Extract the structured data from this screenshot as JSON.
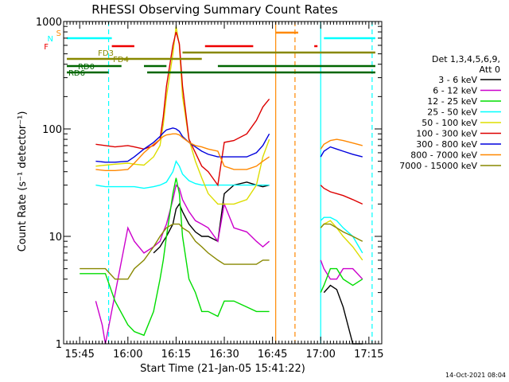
{
  "chart_data": {
    "type": "line",
    "title": "RHESSI Observing Summary Count Rates",
    "xlabel": "Start Time (21-Jan-05 15:41:22)",
    "ylabel": "Count Rate (s⁻¹ detector⁻¹)",
    "y_scale": "log",
    "ylim": [
      1,
      1000
    ],
    "xlim_minutes_after_1540": [
      0,
      99
    ],
    "x_tick_labels": [
      "15:45",
      "16:00",
      "16:15",
      "16:30",
      "16:45",
      "17:00",
      "17:15"
    ],
    "x_tick_minutes": [
      5,
      20,
      35,
      50,
      65,
      80,
      95
    ],
    "y_tick_labels": [
      "1",
      "10",
      "100",
      "1000"
    ],
    "y_tick_values": [
      1,
      10,
      100,
      1000
    ],
    "grid": false,
    "legend_position": "right",
    "legend_header": [
      "Det 1,3,4,5,6,9,",
      "Att 0"
    ],
    "series": [
      {
        "name": "3 - 6 keV",
        "color": "#000000",
        "x": [
          5,
          13,
          18,
          20,
          22,
          25,
          28,
          30,
          31,
          32,
          34,
          35,
          36,
          37,
          39,
          41,
          43,
          45,
          48,
          50,
          53,
          57,
          60,
          62,
          64,
          66,
          67,
          79,
          80,
          81,
          83,
          85,
          87,
          90,
          93,
          95,
          96
        ],
        "y": [
          null,
          null,
          null,
          null,
          null,
          null,
          7,
          8,
          9,
          10,
          13,
          18,
          20,
          17,
          13,
          11,
          10,
          10,
          9,
          25,
          30,
          32,
          30,
          29,
          30,
          null,
          null,
          null,
          null,
          3.0,
          3.5,
          3.2,
          2.2,
          1.0,
          1.0,
          null,
          null
        ]
      },
      {
        "name": "6 - 12 keV",
        "color": "#cc00cc",
        "x": [
          5,
          10,
          12,
          13,
          20,
          22,
          25,
          28,
          30,
          31,
          32,
          34,
          35,
          36,
          37,
          39,
          41,
          43,
          45,
          48,
          50,
          53,
          57,
          60,
          62,
          64,
          66,
          67,
          79,
          80,
          81,
          83,
          85,
          87,
          90,
          93,
          95,
          96
        ],
        "y": [
          null,
          2.5,
          1.5,
          1.0,
          12,
          9,
          7,
          8,
          9,
          11,
          13,
          22,
          30,
          28,
          22,
          17,
          14,
          13,
          12,
          9,
          20,
          12,
          11,
          9,
          8,
          9,
          null,
          null,
          null,
          6,
          5,
          4,
          4,
          5,
          5,
          4,
          null,
          null
        ]
      },
      {
        "name": "12 - 25 keV",
        "color": "#00dd00",
        "x": [
          5,
          10,
          13,
          16,
          20,
          22,
          25,
          28,
          30,
          31,
          32,
          34,
          35,
          36,
          37,
          39,
          41,
          43,
          45,
          48,
          50,
          53,
          57,
          60,
          62,
          64,
          66,
          67,
          79,
          80,
          81,
          83,
          85,
          87,
          90,
          93,
          95,
          96
        ],
        "y": [
          4.5,
          4.5,
          4.5,
          2.5,
          1.5,
          1.3,
          1.2,
          2.0,
          4,
          6,
          10,
          25,
          35,
          25,
          10,
          4,
          3,
          2,
          2,
          1.8,
          2.5,
          2.5,
          2.2,
          2,
          2,
          2,
          null,
          null,
          null,
          3,
          3.5,
          5,
          5,
          4,
          3.5,
          4,
          null,
          null
        ]
      },
      {
        "name": "25 - 50 keV",
        "color": "#00ffff",
        "x": [
          5,
          10,
          13,
          16,
          20,
          22,
          25,
          28,
          30,
          31,
          32,
          34,
          35,
          36,
          37,
          39,
          41,
          43,
          45,
          48,
          50,
          53,
          57,
          60,
          62,
          64,
          66,
          67,
          79,
          80,
          81,
          83,
          85,
          87,
          90,
          93,
          95,
          96
        ],
        "y": [
          null,
          30,
          29,
          29,
          29,
          29,
          28,
          29,
          30,
          31,
          32,
          40,
          50,
          45,
          38,
          33,
          31,
          30,
          30,
          30,
          30,
          30,
          30,
          30,
          30,
          30,
          null,
          null,
          null,
          14,
          15,
          15,
          14,
          12,
          10,
          7,
          null,
          null
        ]
      },
      {
        "name": "50 - 100 keV",
        "color": "#dddd00",
        "x": [
          5,
          10,
          13,
          16,
          20,
          22,
          25,
          28,
          30,
          31,
          32,
          34,
          35,
          36,
          37,
          39,
          41,
          43,
          45,
          48,
          50,
          53,
          57,
          60,
          62,
          64,
          66,
          67,
          79,
          80,
          81,
          83,
          85,
          87,
          90,
          93,
          95,
          96
        ],
        "y": [
          null,
          45,
          46,
          47,
          48,
          47,
          46,
          55,
          70,
          110,
          200,
          500,
          900,
          600,
          200,
          80,
          50,
          35,
          25,
          20,
          20,
          20,
          22,
          30,
          55,
          80,
          null,
          null,
          null,
          12,
          13,
          14,
          12,
          10,
          8,
          6,
          null,
          null
        ]
      },
      {
        "name": "100 - 300 keV",
        "color": "#dd0000",
        "x": [
          5,
          10,
          13,
          16,
          20,
          22,
          25,
          28,
          30,
          31,
          32,
          34,
          35,
          36,
          37,
          39,
          41,
          43,
          45,
          48,
          50,
          53,
          57,
          60,
          62,
          64,
          66,
          67,
          79,
          80,
          81,
          83,
          85,
          87,
          90,
          93,
          95,
          96
        ],
        "y": [
          null,
          72,
          70,
          68,
          70,
          68,
          65,
          70,
          80,
          130,
          250,
          600,
          800,
          620,
          250,
          80,
          60,
          45,
          40,
          30,
          75,
          78,
          90,
          120,
          160,
          190,
          null,
          null,
          null,
          30,
          28,
          26,
          25,
          24,
          22,
          20,
          null,
          null
        ]
      },
      {
        "name": "300 - 800 keV",
        "color": "#0000dd",
        "x": [
          5,
          10,
          13,
          16,
          20,
          22,
          25,
          28,
          30,
          31,
          32,
          34,
          35,
          36,
          37,
          39,
          41,
          43,
          45,
          48,
          50,
          53,
          57,
          60,
          62,
          64,
          66,
          67,
          79,
          80,
          81,
          83,
          85,
          87,
          90,
          93,
          95,
          96
        ],
        "y": [
          null,
          50,
          49,
          49,
          50,
          55,
          65,
          75,
          85,
          92,
          98,
          102,
          100,
          95,
          85,
          75,
          68,
          62,
          58,
          55,
          55,
          55,
          55,
          60,
          70,
          90,
          null,
          null,
          null,
          55,
          62,
          68,
          65,
          62,
          58,
          55,
          null,
          null
        ]
      },
      {
        "name": "800 - 7000 keV",
        "color": "#ff8800",
        "x": [
          5,
          10,
          13,
          16,
          20,
          22,
          25,
          28,
          30,
          31,
          32,
          34,
          35,
          36,
          37,
          39,
          41,
          43,
          45,
          48,
          50,
          53,
          57,
          60,
          62,
          64,
          66,
          67,
          79,
          80,
          81,
          83,
          85,
          87,
          90,
          93,
          95,
          96
        ],
        "y": [
          null,
          42,
          41,
          41,
          42,
          48,
          60,
          72,
          80,
          85,
          88,
          90,
          90,
          88,
          83,
          75,
          70,
          68,
          65,
          62,
          45,
          42,
          42,
          45,
          50,
          55,
          null,
          null,
          null,
          65,
          72,
          78,
          80,
          78,
          74,
          70,
          null,
          null
        ]
      },
      {
        "name": "7000 - 15000 keV",
        "color": "#888800",
        "x": [
          5,
          10,
          13,
          16,
          20,
          22,
          25,
          28,
          30,
          31,
          32,
          34,
          35,
          36,
          37,
          39,
          41,
          43,
          45,
          48,
          50,
          53,
          57,
          60,
          62,
          64,
          66,
          67,
          79,
          80,
          81,
          83,
          85,
          87,
          90,
          93,
          95,
          96
        ],
        "y": [
          5,
          5,
          5,
          4,
          4,
          5,
          6,
          8,
          10,
          11,
          12,
          13,
          13,
          13,
          12,
          11,
          9,
          8,
          7,
          6,
          5.5,
          5.5,
          5.5,
          5.5,
          6,
          6,
          null,
          null,
          null,
          12,
          13,
          13,
          12,
          11,
          10,
          9,
          null,
          null
        ]
      }
    ],
    "flag_bars": [
      {
        "name": "N",
        "color": "#00ffff",
        "segments": [
          [
            1,
            15
          ],
          [
            81,
            97
          ]
        ]
      },
      {
        "name": "F",
        "color": "#ee0000",
        "segments": [
          [
            15,
            22
          ],
          [
            44,
            59
          ],
          [
            78,
            79
          ]
        ]
      },
      {
        "name": "S",
        "color": "#ff8800",
        "segments": [
          [
            66,
            73
          ]
        ]
      },
      {
        "name": "FD3",
        "color": "#888800",
        "segments": [
          [
            37,
            97
          ]
        ]
      },
      {
        "name": "FD4",
        "color": "#888800",
        "segments": [
          [
            1,
            43
          ]
        ]
      },
      {
        "name": "RD0",
        "color": "#006600",
        "segments": [
          [
            1,
            18
          ],
          [
            25,
            32
          ],
          [
            48,
            97
          ]
        ]
      },
      {
        "name": "RD6",
        "color": "#006600",
        "segments": [
          [
            1,
            14
          ],
          [
            26,
            97
          ]
        ]
      }
    ],
    "vertical_markers": [
      {
        "x": 14,
        "color": "#00ffff",
        "dashed": true
      },
      {
        "x": 66,
        "color": "#ff8800",
        "dashed": false
      },
      {
        "x": 72,
        "color": "#ff8800",
        "dashed": true
      },
      {
        "x": 80,
        "color": "#00ffff",
        "dashed": false
      },
      {
        "x": 96,
        "color": "#00ffff",
        "dashed": true
      }
    ],
    "timestamp": "14-Oct-2021 08:04"
  }
}
